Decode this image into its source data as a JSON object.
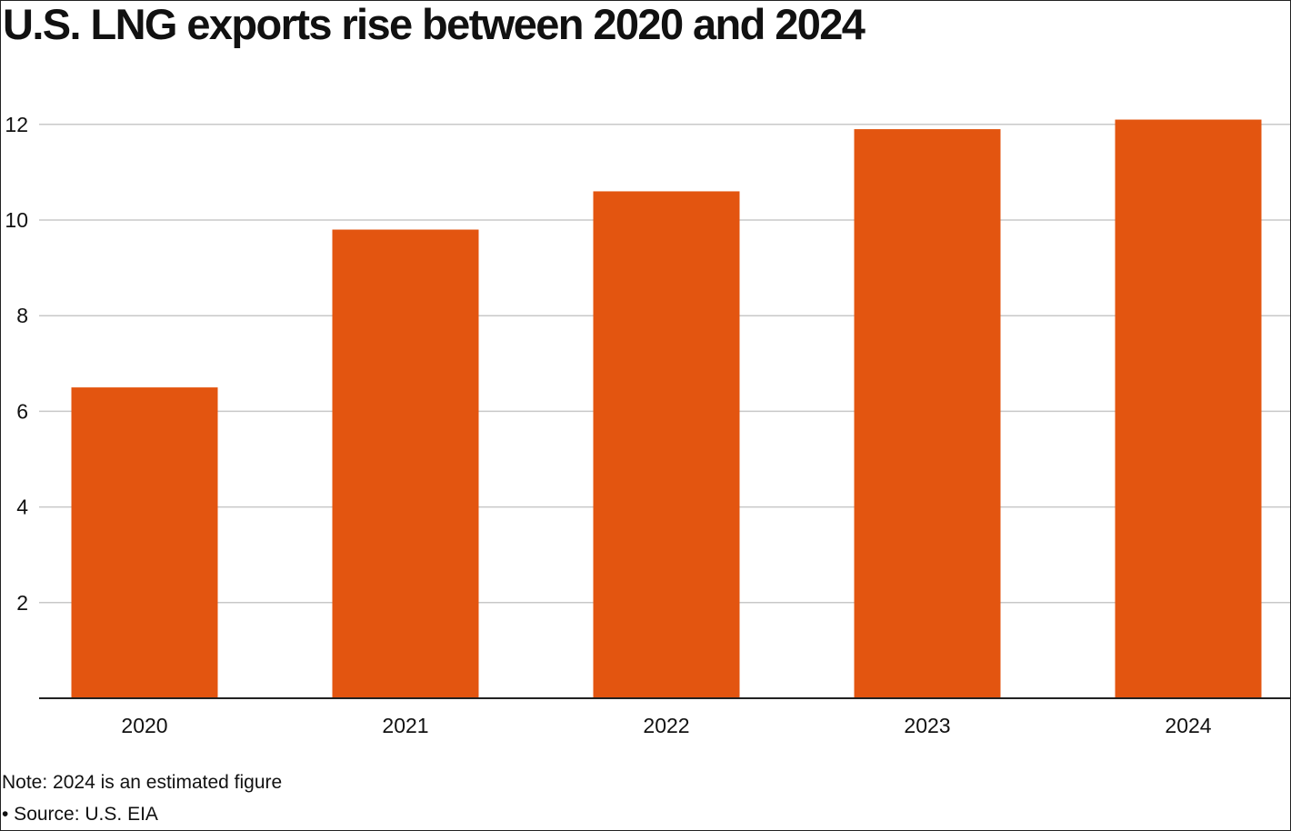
{
  "chart_data": {
    "type": "bar",
    "title": "U.S. LNG exports rise between 2020 and 2024",
    "categories": [
      "2020",
      "2021",
      "2022",
      "2023",
      "2024"
    ],
    "values": [
      6.5,
      9.8,
      10.6,
      11.9,
      12.1
    ],
    "y_ticks": [
      "2",
      "4",
      "6",
      "8",
      "10",
      "12"
    ],
    "y_tick_values": [
      2,
      4,
      6,
      8,
      10,
      12
    ],
    "ylim": [
      0,
      12.4
    ],
    "xlabel": "",
    "ylabel": "",
    "grid": true,
    "legend": "none",
    "bar_color": "#E35510",
    "grid_color": "#C8C8C8"
  },
  "footer": {
    "note": "Note: 2024 is an estimated figure",
    "source": "• Source: U.S. EIA"
  }
}
